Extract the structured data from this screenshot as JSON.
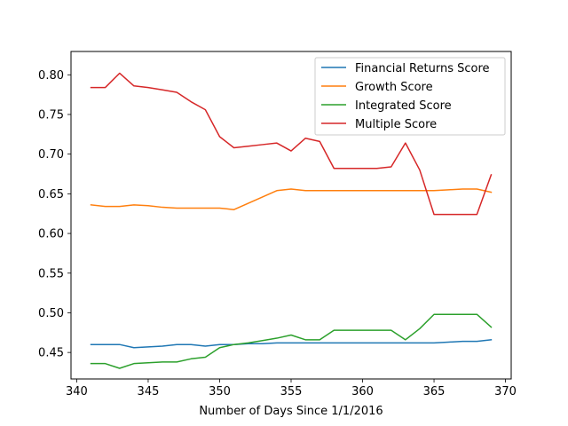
{
  "chart_data": {
    "type": "line",
    "title": "",
    "xlabel": "Number of Days Since 1/1/2016",
    "ylabel": "",
    "xlim": [
      339.6,
      370.4
    ],
    "ylim": [
      0.4166,
      0.8294
    ],
    "xticks": [
      340,
      345,
      350,
      355,
      360,
      365,
      370
    ],
    "yticks": [
      0.45,
      0.5,
      0.55,
      0.6,
      0.65,
      0.7,
      0.75,
      0.8
    ],
    "xtick_labels": [
      "340",
      "345",
      "350",
      "355",
      "360",
      "365",
      "370"
    ],
    "ytick_labels": [
      "0.45",
      "0.50",
      "0.55",
      "0.60",
      "0.65",
      "0.70",
      "0.75",
      "0.80"
    ],
    "grid": false,
    "legend_position": "upper-right",
    "series": [
      {
        "name": "Financial Returns Score",
        "color": "#1f77b4",
        "x": [
          341,
          342,
          343,
          344,
          345,
          346,
          347,
          348,
          349,
          350,
          351,
          352,
          353,
          354,
          355,
          356,
          357,
          358,
          359,
          360,
          361,
          362,
          363,
          364,
          365,
          366,
          367,
          368,
          369
        ],
        "y": [
          0.46,
          0.46,
          0.46,
          0.456,
          0.457,
          0.458,
          0.46,
          0.46,
          0.458,
          0.46,
          0.46,
          0.461,
          0.461,
          0.462,
          0.462,
          0.462,
          0.462,
          0.462,
          0.462,
          0.462,
          0.462,
          0.462,
          0.462,
          0.462,
          0.462,
          0.463,
          0.464,
          0.464,
          0.466
        ]
      },
      {
        "name": "Growth Score",
        "color": "#ff7f0e",
        "x": [
          341,
          342,
          343,
          344,
          345,
          346,
          347,
          348,
          349,
          350,
          351,
          352,
          353,
          354,
          355,
          356,
          357,
          358,
          359,
          360,
          361,
          362,
          363,
          364,
          365,
          366,
          367,
          368,
          369
        ],
        "y": [
          0.636,
          0.634,
          0.634,
          0.636,
          0.635,
          0.633,
          0.632,
          0.632,
          0.632,
          0.632,
          0.63,
          0.638,
          0.646,
          0.654,
          0.656,
          0.654,
          0.654,
          0.654,
          0.654,
          0.654,
          0.654,
          0.654,
          0.654,
          0.654,
          0.654,
          0.655,
          0.656,
          0.656,
          0.652
        ]
      },
      {
        "name": "Integrated Score",
        "color": "#2ca02c",
        "x": [
          341,
          342,
          343,
          344,
          345,
          346,
          347,
          348,
          349,
          350,
          351,
          352,
          353,
          354,
          355,
          356,
          357,
          358,
          359,
          360,
          361,
          362,
          363,
          364,
          365,
          366,
          367,
          368,
          369
        ],
        "y": [
          0.436,
          0.436,
          0.43,
          0.436,
          0.437,
          0.438,
          0.438,
          0.442,
          0.444,
          0.456,
          0.46,
          0.462,
          0.465,
          0.468,
          0.472,
          0.466,
          0.466,
          0.478,
          0.478,
          0.478,
          0.478,
          0.478,
          0.466,
          0.48,
          0.498,
          0.498,
          0.498,
          0.498,
          0.482
        ]
      },
      {
        "name": "Multiple Score",
        "color": "#d62728",
        "x": [
          341,
          342,
          343,
          344,
          345,
          346,
          347,
          348,
          349,
          350,
          351,
          352,
          353,
          354,
          355,
          356,
          357,
          358,
          359,
          360,
          361,
          362,
          363,
          364,
          365,
          366,
          367,
          368,
          369
        ],
        "y": [
          0.784,
          0.784,
          0.802,
          0.786,
          0.784,
          0.781,
          0.778,
          0.766,
          0.756,
          0.722,
          0.708,
          0.71,
          0.712,
          0.714,
          0.704,
          0.72,
          0.716,
          0.682,
          0.682,
          0.682,
          0.682,
          0.684,
          0.714,
          0.68,
          0.624,
          0.624,
          0.624,
          0.624,
          0.674
        ]
      }
    ]
  }
}
